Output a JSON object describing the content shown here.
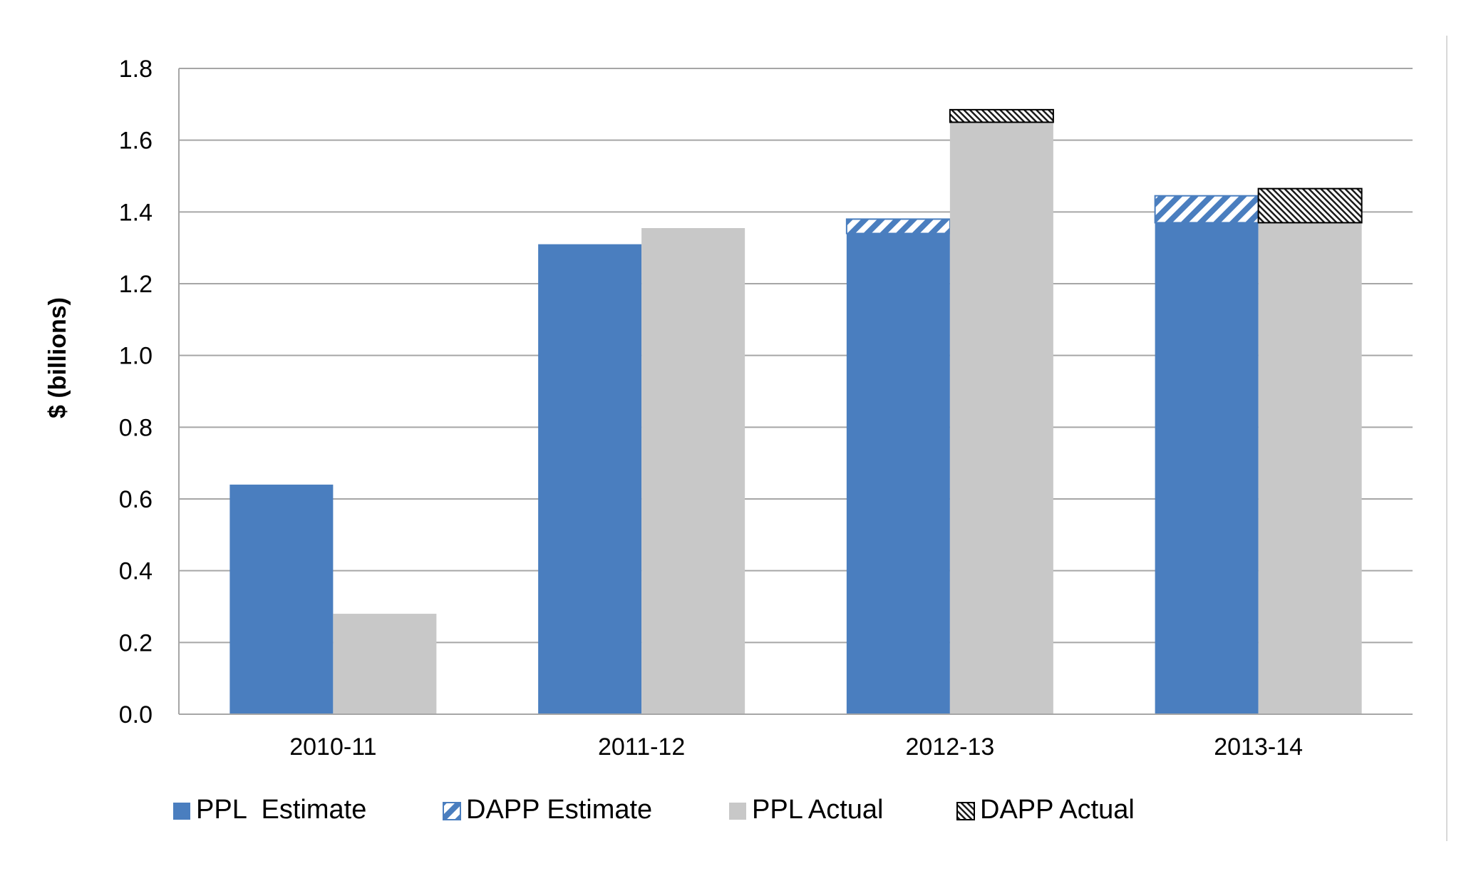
{
  "chart_data": {
    "type": "bar",
    "stacked_pairs": true,
    "title": "",
    "xlabel": "",
    "ylabel": "$ (billions)",
    "ylim": [
      0,
      1.8
    ],
    "yticks": [
      "0.0",
      "0.2",
      "0.4",
      "0.6",
      "0.8",
      "1.0",
      "1.2",
      "1.4",
      "1.6",
      "1.8"
    ],
    "grid": true,
    "legend_position": "bottom",
    "categories": [
      "2010-11",
      "2011-12",
      "2012-13",
      "2013-14"
    ],
    "series": [
      {
        "name": "PPL  Estimate",
        "group": "estimate",
        "pattern": "solid",
        "color": "#4A7EBF",
        "values": [
          0.64,
          1.31,
          1.34,
          1.37
        ]
      },
      {
        "name": "DAPP Estimate",
        "group": "estimate",
        "pattern": "diagonal-blue",
        "color": "#4A7EBF",
        "values": [
          0,
          0,
          0.04,
          0.075
        ]
      },
      {
        "name": "PPL Actual",
        "group": "actual",
        "pattern": "solid",
        "color": "#C8C8C8",
        "values": [
          0.28,
          1.355,
          1.65,
          1.37
        ]
      },
      {
        "name": "DAPP Actual",
        "group": "actual",
        "pattern": "hatch-black",
        "color": "#000000",
        "values": [
          0,
          0,
          0.035,
          0.095
        ]
      }
    ]
  }
}
